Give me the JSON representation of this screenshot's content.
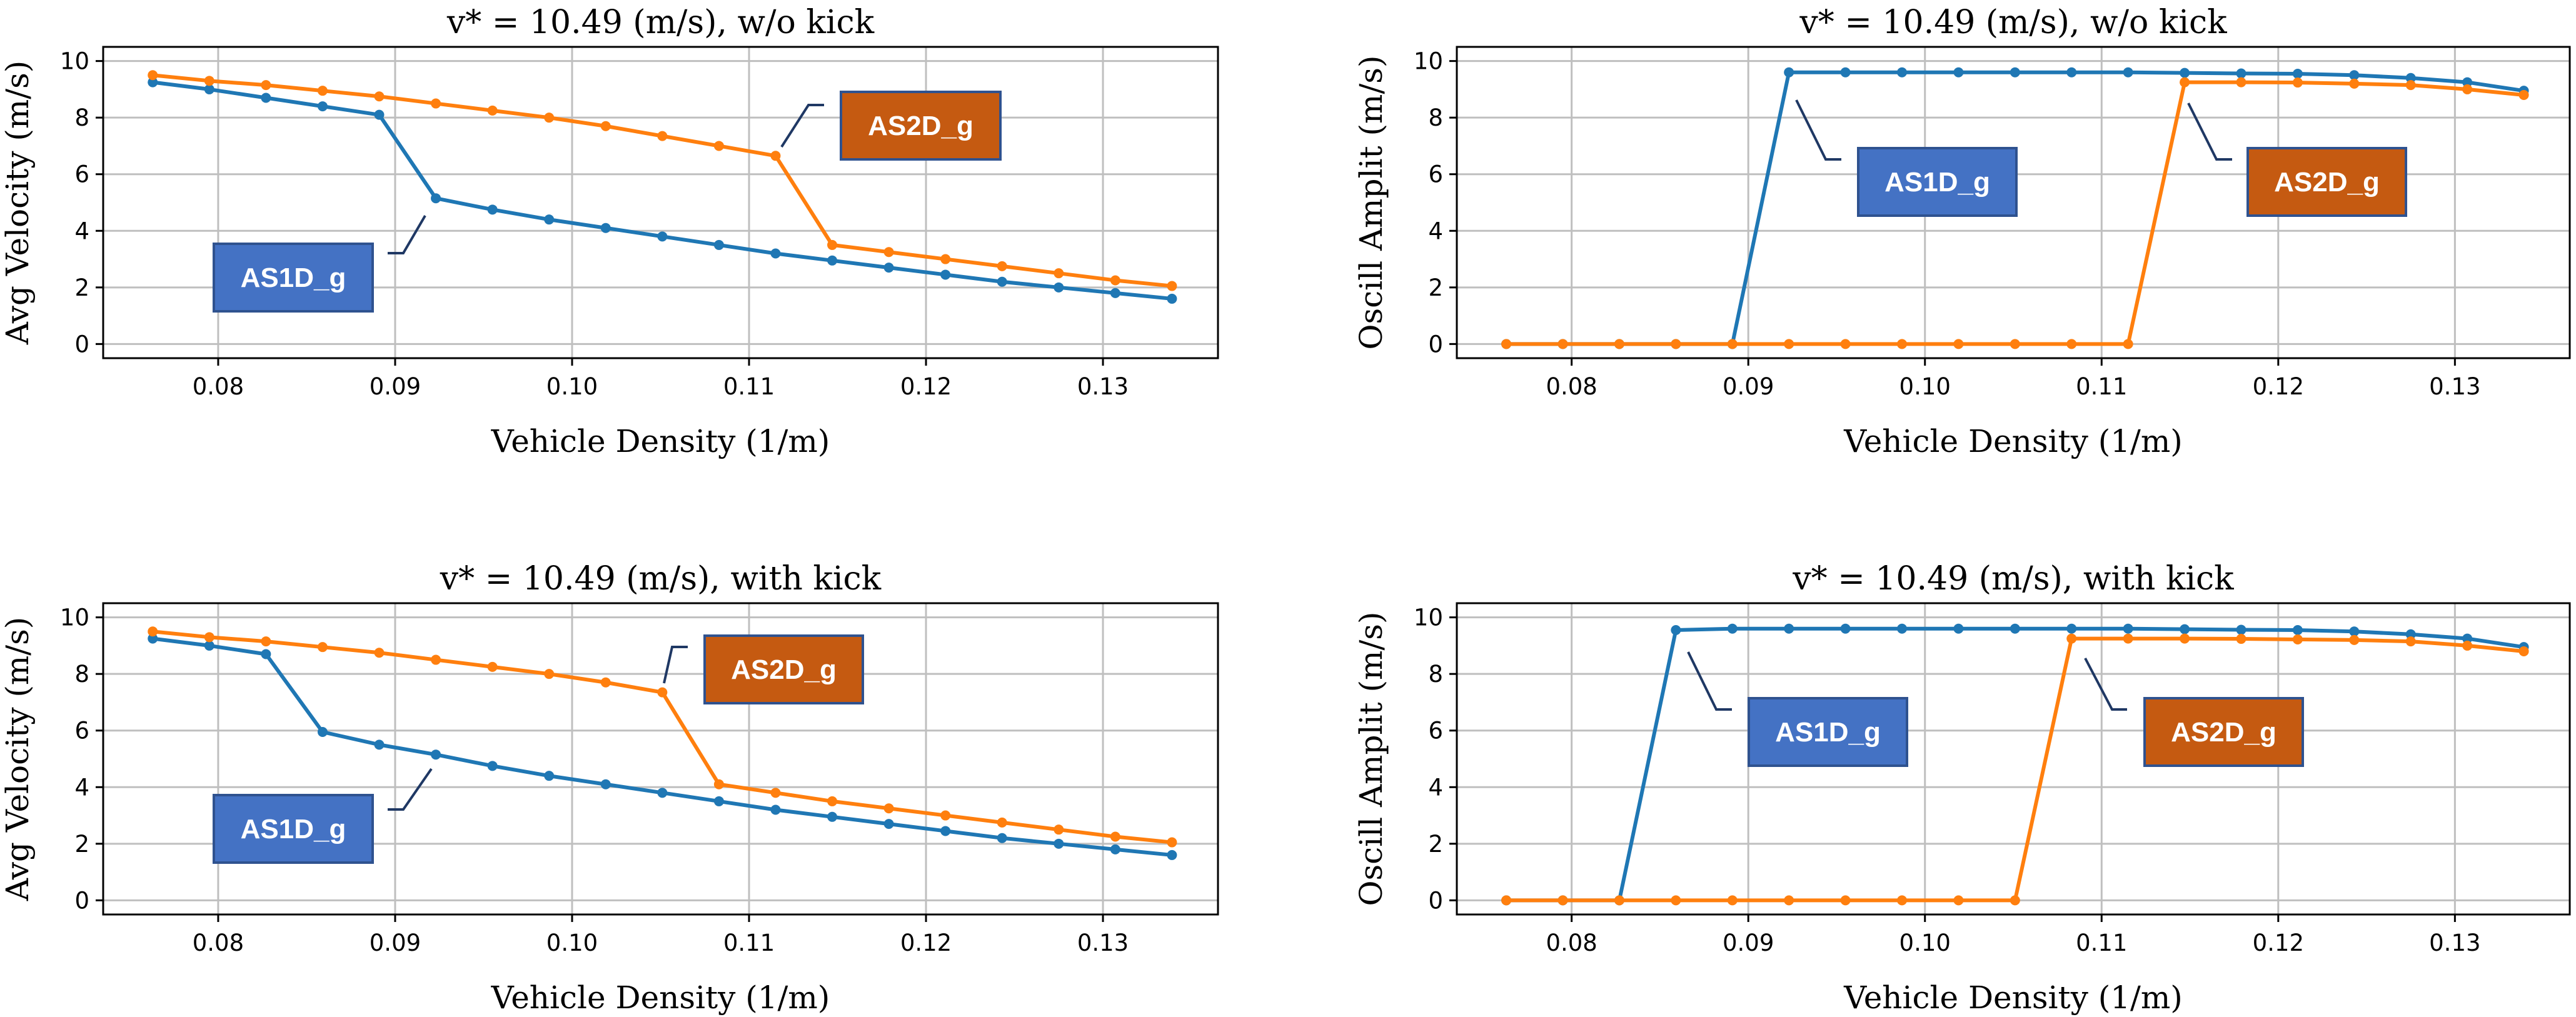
{
  "colors": {
    "blue": "#1f77b4",
    "orange": "#ff7f0e",
    "blue_box": "#4472c4",
    "blue_box_border": "#2f528f",
    "orange_box": "#c55a11",
    "orange_box_border": "#2f528f",
    "grid": "#bfbfbf",
    "leader": "#1f3864"
  },
  "chart_data": [
    {
      "type": "line",
      "title": "v* = 10.49 (m/s), w/o kick",
      "xlabel": "Vehicle Density (1/m)",
      "ylabel": "Avg Velocity (m/s)",
      "xlim": [
        0.0735,
        0.1365
      ],
      "ylim": [
        -0.5,
        10.5
      ],
      "xticks": [
        0.08,
        0.09,
        0.1,
        0.11,
        0.12,
        0.13
      ],
      "xtick_labels": [
        "0.08",
        "0.09",
        "0.10",
        "0.11",
        "0.12",
        "0.13"
      ],
      "yticks": [
        0,
        2,
        4,
        6,
        8,
        10
      ],
      "ytick_labels": [
        "0",
        "2",
        "4",
        "6",
        "8",
        "10"
      ],
      "grid": true,
      "x": [
        0.0763,
        0.0795,
        0.0827,
        0.0859,
        0.0891,
        0.0923,
        0.0955,
        0.0987,
        0.1019,
        0.1051,
        0.1083,
        0.1115,
        0.1147,
        0.1179,
        0.1211,
        0.1243,
        0.1275,
        0.1307,
        0.1339
      ],
      "series": [
        {
          "name": "AS1D_g",
          "values": [
            9.25,
            9.0,
            8.7,
            8.4,
            8.1,
            5.15,
            4.75,
            4.4,
            4.1,
            3.8,
            3.5,
            3.2,
            2.95,
            2.7,
            2.45,
            2.2,
            2.0,
            1.8,
            1.6
          ]
        },
        {
          "name": "AS2D_g",
          "values": [
            9.5,
            9.3,
            9.15,
            8.95,
            8.75,
            8.5,
            8.25,
            8.0,
            7.7,
            7.35,
            7.0,
            6.65,
            3.5,
            3.25,
            3.0,
            2.75,
            2.5,
            2.25,
            2.05
          ]
        }
      ],
      "callouts": [
        {
          "label": "AS1D_g",
          "series": 0
        },
        {
          "label": "AS2D_g",
          "series": 1
        }
      ]
    },
    {
      "type": "line",
      "title": "v* = 10.49 (m/s), w/o kick",
      "xlabel": "Vehicle Density (1/m)",
      "ylabel": "Oscill Amplit (m/s)",
      "xlim": [
        0.0735,
        0.1365
      ],
      "ylim": [
        -0.5,
        10.5
      ],
      "xticks": [
        0.08,
        0.09,
        0.1,
        0.11,
        0.12,
        0.13
      ],
      "xtick_labels": [
        "0.08",
        "0.09",
        "0.10",
        "0.11",
        "0.12",
        "0.13"
      ],
      "yticks": [
        0,
        2,
        4,
        6,
        8,
        10
      ],
      "ytick_labels": [
        "0",
        "2",
        "4",
        "6",
        "8",
        "10"
      ],
      "grid": true,
      "x": [
        0.0763,
        0.0795,
        0.0827,
        0.0859,
        0.0891,
        0.0923,
        0.0955,
        0.0987,
        0.1019,
        0.1051,
        0.1083,
        0.1115,
        0.1147,
        0.1179,
        0.1211,
        0.1243,
        0.1275,
        0.1307,
        0.1339
      ],
      "series": [
        {
          "name": "AS1D_g",
          "values": [
            0,
            0,
            0,
            0,
            0,
            9.6,
            9.6,
            9.6,
            9.6,
            9.6,
            9.6,
            9.6,
            9.58,
            9.56,
            9.55,
            9.5,
            9.4,
            9.25,
            8.95
          ]
        },
        {
          "name": "AS2D_g",
          "values": [
            0,
            0,
            0,
            0,
            0,
            0,
            0,
            0,
            0,
            0,
            0,
            0,
            9.25,
            9.25,
            9.24,
            9.2,
            9.15,
            9.0,
            8.8
          ]
        }
      ],
      "callouts": [
        {
          "label": "AS1D_g",
          "series": 0
        },
        {
          "label": "AS2D_g",
          "series": 1
        }
      ]
    },
    {
      "type": "line",
      "title": "v* = 10.49 (m/s), with kick",
      "xlabel": "Vehicle Density (1/m)",
      "ylabel": "Avg Velocity (m/s)",
      "xlim": [
        0.0735,
        0.1365
      ],
      "ylim": [
        -0.5,
        10.5
      ],
      "xticks": [
        0.08,
        0.09,
        0.1,
        0.11,
        0.12,
        0.13
      ],
      "xtick_labels": [
        "0.08",
        "0.09",
        "0.10",
        "0.11",
        "0.12",
        "0.13"
      ],
      "yticks": [
        0,
        2,
        4,
        6,
        8,
        10
      ],
      "ytick_labels": [
        "0",
        "2",
        "4",
        "6",
        "8",
        "10"
      ],
      "grid": true,
      "x": [
        0.0763,
        0.0795,
        0.0827,
        0.0859,
        0.0891,
        0.0923,
        0.0955,
        0.0987,
        0.1019,
        0.1051,
        0.1083,
        0.1115,
        0.1147,
        0.1179,
        0.1211,
        0.1243,
        0.1275,
        0.1307,
        0.1339
      ],
      "series": [
        {
          "name": "AS1D_g",
          "values": [
            9.25,
            9.0,
            8.7,
            5.95,
            5.5,
            5.15,
            4.75,
            4.4,
            4.1,
            3.8,
            3.5,
            3.2,
            2.95,
            2.7,
            2.45,
            2.2,
            2.0,
            1.8,
            1.6
          ]
        },
        {
          "name": "AS2D_g",
          "values": [
            9.5,
            9.3,
            9.15,
            8.95,
            8.75,
            8.5,
            8.25,
            8.0,
            7.7,
            7.35,
            4.1,
            3.8,
            3.5,
            3.25,
            3.0,
            2.75,
            2.5,
            2.25,
            2.05
          ]
        }
      ],
      "callouts": [
        {
          "label": "AS1D_g",
          "series": 0
        },
        {
          "label": "AS2D_g",
          "series": 1
        }
      ]
    },
    {
      "type": "line",
      "title": "v* = 10.49 (m/s), with kick",
      "xlabel": "Vehicle Density (1/m)",
      "ylabel": "Oscill Amplit (m/s)",
      "xlim": [
        0.0735,
        0.1365
      ],
      "ylim": [
        -0.5,
        10.5
      ],
      "xticks": [
        0.08,
        0.09,
        0.1,
        0.11,
        0.12,
        0.13
      ],
      "xtick_labels": [
        "0.08",
        "0.09",
        "0.10",
        "0.11",
        "0.12",
        "0.13"
      ],
      "yticks": [
        0,
        2,
        4,
        6,
        8,
        10
      ],
      "ytick_labels": [
        "0",
        "2",
        "4",
        "6",
        "8",
        "10"
      ],
      "grid": true,
      "x": [
        0.0763,
        0.0795,
        0.0827,
        0.0859,
        0.0891,
        0.0923,
        0.0955,
        0.0987,
        0.1019,
        0.1051,
        0.1083,
        0.1115,
        0.1147,
        0.1179,
        0.1211,
        0.1243,
        0.1275,
        0.1307,
        0.1339
      ],
      "series": [
        {
          "name": "AS1D_g",
          "values": [
            0,
            0,
            0,
            9.55,
            9.6,
            9.6,
            9.6,
            9.6,
            9.6,
            9.6,
            9.6,
            9.6,
            9.58,
            9.56,
            9.55,
            9.5,
            9.4,
            9.25,
            8.95
          ]
        },
        {
          "name": "AS2D_g",
          "values": [
            0,
            0,
            0,
            0,
            0,
            0,
            0,
            0,
            0,
            0,
            9.25,
            9.25,
            9.25,
            9.24,
            9.22,
            9.2,
            9.15,
            9.0,
            8.8
          ]
        }
      ],
      "callouts": [
        {
          "label": "AS1D_g",
          "series": 0
        },
        {
          "label": "AS2D_g",
          "series": 1
        }
      ]
    }
  ]
}
